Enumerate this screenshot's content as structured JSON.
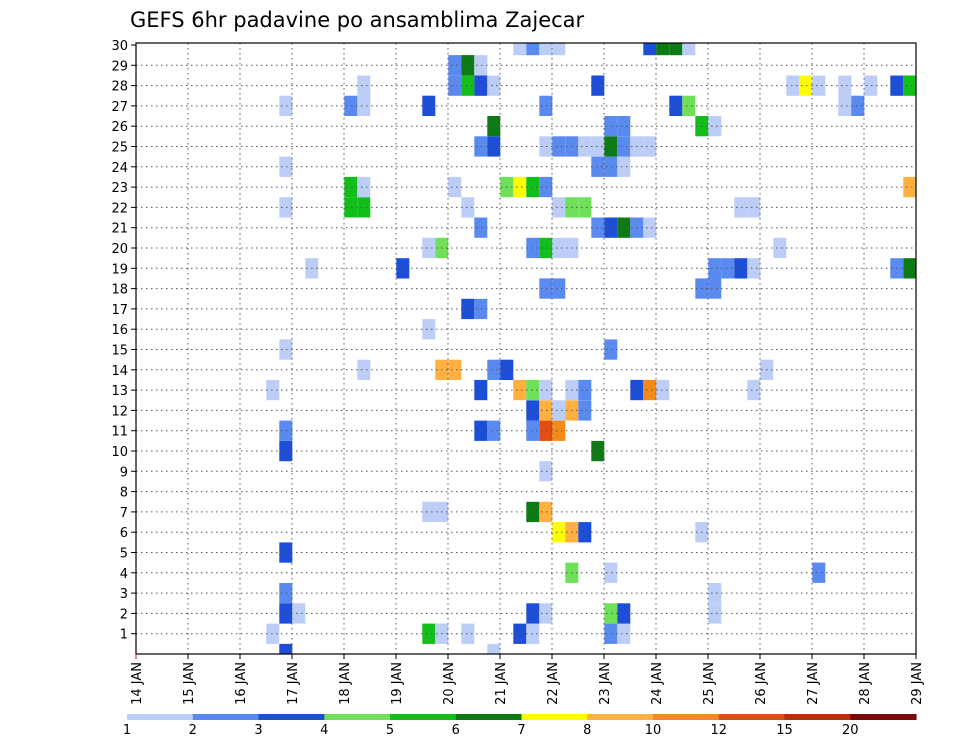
{
  "chart_data": {
    "type": "heatmap",
    "title": "GEFS 6hr padavine po ansamblima Zajecar",
    "xlabel": "",
    "ylabel": "",
    "x_tick_labels": [
      "14 JAN",
      "15 JAN",
      "16 JAN",
      "17 JAN",
      "18 JAN",
      "19 JAN",
      "20 JAN",
      "21 JAN",
      "22 JAN",
      "23 JAN",
      "24 JAN",
      "25 JAN",
      "26 JAN",
      "27 JAN",
      "28 JAN",
      "29 JAN"
    ],
    "y_tick_labels": [
      "1",
      "2",
      "3",
      "4",
      "5",
      "6",
      "7",
      "8",
      "9",
      "10",
      "11",
      "12",
      "13",
      "14",
      "15",
      "16",
      "17",
      "18",
      "19",
      "20",
      "21",
      "22",
      "23",
      "24",
      "25",
      "26",
      "27",
      "28",
      "29",
      "30"
    ],
    "xlim_days": [
      14,
      29
    ],
    "ylim_members": [
      0,
      30
    ],
    "grid": true,
    "legend_position": "bottom",
    "colorbar": {
      "tick_labels": [
        "1",
        "2",
        "3",
        "4",
        "5",
        "6",
        "7",
        "8",
        "10",
        "12",
        "15",
        "20"
      ],
      "colors": [
        "#bccdf7",
        "#5a8af0",
        "#1c4ed8",
        "#6fe05a",
        "#12bf1a",
        "#0e7a14",
        "#fffb00",
        "#ffb040",
        "#f58a18",
        "#e54c12",
        "#c42b0c",
        "#7a0a0a"
      ]
    },
    "cells": [
      {
        "member": 1,
        "day": 16.63,
        "v": 1
      },
      {
        "member": 1,
        "day": 19.63,
        "v": 5
      },
      {
        "member": 1,
        "day": 19.88,
        "v": 1
      },
      {
        "member": 1,
        "day": 20.38,
        "v": 1
      },
      {
        "member": 1,
        "day": 21.38,
        "v": 3
      },
      {
        "member": 1,
        "day": 21.63,
        "v": 1
      },
      {
        "member": 1,
        "day": 23.13,
        "v": 2
      },
      {
        "member": 1,
        "day": 23.38,
        "v": 1
      },
      {
        "member": 0,
        "day": 16.88,
        "v": 3
      },
      {
        "member": 0,
        "day": 20.88,
        "v": 1
      },
      {
        "member": 2,
        "day": 16.88,
        "v": 3
      },
      {
        "member": 2,
        "day": 17.13,
        "v": 1
      },
      {
        "member": 2,
        "day": 21.63,
        "v": 3
      },
      {
        "member": 2,
        "day": 21.88,
        "v": 1
      },
      {
        "member": 2,
        "day": 23.13,
        "v": 4
      },
      {
        "member": 2,
        "day": 23.38,
        "v": 3
      },
      {
        "member": 2,
        "day": 25.13,
        "v": 1
      },
      {
        "member": 3,
        "day": 16.88,
        "v": 2
      },
      {
        "member": 3,
        "day": 25.13,
        "v": 1
      },
      {
        "member": 4,
        "day": 22.38,
        "v": 4
      },
      {
        "member": 4,
        "day": 23.13,
        "v": 1
      },
      {
        "member": 4,
        "day": 27.13,
        "v": 2
      },
      {
        "member": 5,
        "day": 16.88,
        "v": 3
      },
      {
        "member": 6,
        "day": 22.13,
        "v": 7
      },
      {
        "member": 6,
        "day": 22.38,
        "v": 9
      },
      {
        "member": 6,
        "day": 22.63,
        "v": 3
      },
      {
        "member": 6,
        "day": 24.88,
        "v": 1
      },
      {
        "member": 7,
        "day": 19.63,
        "v": 1
      },
      {
        "member": 7,
        "day": 19.88,
        "v": 1
      },
      {
        "member": 7,
        "day": 21.63,
        "v": 6
      },
      {
        "member": 7,
        "day": 21.88,
        "v": 9
      },
      {
        "member": 9,
        "day": 21.88,
        "v": 1
      },
      {
        "member": 10,
        "day": 16.88,
        "v": 3
      },
      {
        "member": 10,
        "day": 22.88,
        "v": 6
      },
      {
        "member": 11,
        "day": 16.88,
        "v": 2
      },
      {
        "member": 11,
        "day": 20.63,
        "v": 3
      },
      {
        "member": 11,
        "day": 20.88,
        "v": 2
      },
      {
        "member": 11,
        "day": 21.63,
        "v": 2
      },
      {
        "member": 11,
        "day": 21.88,
        "v": 12
      },
      {
        "member": 11,
        "day": 22.13,
        "v": 10
      },
      {
        "member": 12,
        "day": 21.63,
        "v": 3
      },
      {
        "member": 12,
        "day": 21.88,
        "v": 8
      },
      {
        "member": 12,
        "day": 22.13,
        "v": 1
      },
      {
        "member": 12,
        "day": 22.38,
        "v": 9
      },
      {
        "member": 12,
        "day": 22.63,
        "v": 2
      },
      {
        "member": 13,
        "day": 16.63,
        "v": 1
      },
      {
        "member": 13,
        "day": 20.63,
        "v": 3
      },
      {
        "member": 13,
        "day": 21.38,
        "v": 8
      },
      {
        "member": 13,
        "day": 21.63,
        "v": 4
      },
      {
        "member": 13,
        "day": 21.88,
        "v": 1
      },
      {
        "member": 13,
        "day": 22.38,
        "v": 1
      },
      {
        "member": 13,
        "day": 22.63,
        "v": 2
      },
      {
        "member": 13,
        "day": 23.63,
        "v": 3
      },
      {
        "member": 13,
        "day": 23.88,
        "v": 10
      },
      {
        "member": 13,
        "day": 24.13,
        "v": 1
      },
      {
        "member": 13,
        "day": 25.88,
        "v": 1
      },
      {
        "member": 14,
        "day": 18.38,
        "v": 1
      },
      {
        "member": 14,
        "day": 19.88,
        "v": 8
      },
      {
        "member": 14,
        "day": 20.13,
        "v": 9
      },
      {
        "member": 14,
        "day": 20.88,
        "v": 2
      },
      {
        "member": 14,
        "day": 21.13,
        "v": 3
      },
      {
        "member": 14,
        "day": 26.13,
        "v": 1
      },
      {
        "member": 15,
        "day": 16.88,
        "v": 1
      },
      {
        "member": 15,
        "day": 23.13,
        "v": 2
      },
      {
        "member": 16,
        "day": 19.63,
        "v": 1
      },
      {
        "member": 17,
        "day": 20.38,
        "v": 3
      },
      {
        "member": 17,
        "day": 20.63,
        "v": 2
      },
      {
        "member": 18,
        "day": 21.88,
        "v": 2
      },
      {
        "member": 18,
        "day": 22.13,
        "v": 2
      },
      {
        "member": 18,
        "day": 24.88,
        "v": 2
      },
      {
        "member": 18,
        "day": 25.13,
        "v": 2
      },
      {
        "member": 19,
        "day": 17.38,
        "v": 1
      },
      {
        "member": 19,
        "day": 19.13,
        "v": 3
      },
      {
        "member": 19,
        "day": 25.13,
        "v": 2
      },
      {
        "member": 19,
        "day": 25.38,
        "v": 2
      },
      {
        "member": 19,
        "day": 25.63,
        "v": 3
      },
      {
        "member": 19,
        "day": 25.88,
        "v": 1
      },
      {
        "member": 19,
        "day": 28.63,
        "v": 2
      },
      {
        "member": 19,
        "day": 28.88,
        "v": 6
      },
      {
        "member": 20,
        "day": 19.63,
        "v": 1
      },
      {
        "member": 20,
        "day": 19.88,
        "v": 4
      },
      {
        "member": 20,
        "day": 21.63,
        "v": 2
      },
      {
        "member": 20,
        "day": 21.88,
        "v": 5
      },
      {
        "member": 20,
        "day": 22.13,
        "v": 1
      },
      {
        "member": 20,
        "day": 22.38,
        "v": 1
      },
      {
        "member": 20,
        "day": 26.38,
        "v": 1
      },
      {
        "member": 21,
        "day": 20.63,
        "v": 2
      },
      {
        "member": 21,
        "day": 22.88,
        "v": 2
      },
      {
        "member": 21,
        "day": 23.13,
        "v": 3
      },
      {
        "member": 21,
        "day": 23.38,
        "v": 6
      },
      {
        "member": 21,
        "day": 23.63,
        "v": 2
      },
      {
        "member": 21,
        "day": 23.88,
        "v": 1
      },
      {
        "member": 22,
        "day": 16.88,
        "v": 1
      },
      {
        "member": 22,
        "day": 18.13,
        "v": 5
      },
      {
        "member": 22,
        "day": 18.38,
        "v": 5
      },
      {
        "member": 22,
        "day": 20.38,
        "v": 1
      },
      {
        "member": 22,
        "day": 22.13,
        "v": 1
      },
      {
        "member": 22,
        "day": 22.38,
        "v": 4
      },
      {
        "member": 22,
        "day": 22.63,
        "v": 4
      },
      {
        "member": 22,
        "day": 25.63,
        "v": 1
      },
      {
        "member": 22,
        "day": 25.88,
        "v": 1
      },
      {
        "member": 23,
        "day": 18.13,
        "v": 5
      },
      {
        "member": 23,
        "day": 18.38,
        "v": 1
      },
      {
        "member": 23,
        "day": 20.13,
        "v": 1
      },
      {
        "member": 23,
        "day": 21.13,
        "v": 4
      },
      {
        "member": 23,
        "day": 21.38,
        "v": 7
      },
      {
        "member": 23,
        "day": 21.63,
        "v": 5
      },
      {
        "member": 23,
        "day": 21.88,
        "v": 2
      },
      {
        "member": 23,
        "day": 28.88,
        "v": 8
      },
      {
        "member": 24,
        "day": 16.88,
        "v": 1
      },
      {
        "member": 24,
        "day": 22.88,
        "v": 2
      },
      {
        "member": 24,
        "day": 23.13,
        "v": 2
      },
      {
        "member": 24,
        "day": 23.38,
        "v": 1
      },
      {
        "member": 25,
        "day": 20.63,
        "v": 2
      },
      {
        "member": 25,
        "day": 20.88,
        "v": 3
      },
      {
        "member": 25,
        "day": 21.88,
        "v": 1
      },
      {
        "member": 25,
        "day": 22.13,
        "v": 2
      },
      {
        "member": 25,
        "day": 22.38,
        "v": 2
      },
      {
        "member": 25,
        "day": 22.63,
        "v": 1
      },
      {
        "member": 25,
        "day": 22.88,
        "v": 1
      },
      {
        "member": 25,
        "day": 23.13,
        "v": 6
      },
      {
        "member": 25,
        "day": 23.38,
        "v": 2
      },
      {
        "member": 25,
        "day": 23.63,
        "v": 1
      },
      {
        "member": 25,
        "day": 23.88,
        "v": 1
      },
      {
        "member": 26,
        "day": 20.88,
        "v": 6
      },
      {
        "member": 26,
        "day": 23.13,
        "v": 2
      },
      {
        "member": 26,
        "day": 23.38,
        "v": 2
      },
      {
        "member": 26,
        "day": 24.88,
        "v": 5
      },
      {
        "member": 26,
        "day": 25.13,
        "v": 1
      },
      {
        "member": 27,
        "day": 16.88,
        "v": 1
      },
      {
        "member": 27,
        "day": 18.13,
        "v": 2
      },
      {
        "member": 27,
        "day": 18.38,
        "v": 1
      },
      {
        "member": 27,
        "day": 19.63,
        "v": 3
      },
      {
        "member": 27,
        "day": 21.88,
        "v": 2
      },
      {
        "member": 27,
        "day": 24.38,
        "v": 3
      },
      {
        "member": 27,
        "day": 24.63,
        "v": 4
      },
      {
        "member": 27,
        "day": 27.63,
        "v": 1
      },
      {
        "member": 27,
        "day": 27.88,
        "v": 2
      },
      {
        "member": 28,
        "day": 18.38,
        "v": 1
      },
      {
        "member": 28,
        "day": 20.13,
        "v": 2
      },
      {
        "member": 28,
        "day": 20.38,
        "v": 5
      },
      {
        "member": 28,
        "day": 20.63,
        "v": 3
      },
      {
        "member": 28,
        "day": 20.88,
        "v": 1
      },
      {
        "member": 28,
        "day": 22.88,
        "v": 3
      },
      {
        "member": 28,
        "day": 26.63,
        "v": 1
      },
      {
        "member": 28,
        "day": 26.88,
        "v": 7
      },
      {
        "member": 28,
        "day": 27.13,
        "v": 1
      },
      {
        "member": 28,
        "day": 27.63,
        "v": 1
      },
      {
        "member": 28,
        "day": 28.13,
        "v": 1
      },
      {
        "member": 28,
        "day": 28.63,
        "v": 3
      },
      {
        "member": 28,
        "day": 28.88,
        "v": 5
      },
      {
        "member": 29,
        "day": 20.13,
        "v": 2
      },
      {
        "member": 29,
        "day": 20.38,
        "v": 6
      },
      {
        "member": 29,
        "day": 20.63,
        "v": 1
      },
      {
        "member": 30,
        "day": 21.38,
        "v": 1
      },
      {
        "member": 30,
        "day": 21.63,
        "v": 2
      },
      {
        "member": 30,
        "day": 21.88,
        "v": 1
      },
      {
        "member": 30,
        "day": 22.13,
        "v": 1
      },
      {
        "member": 30,
        "day": 23.88,
        "v": 3
      },
      {
        "member": 30,
        "day": 24.13,
        "v": 6
      },
      {
        "member": 30,
        "day": 24.38,
        "v": 6
      },
      {
        "member": 30,
        "day": 24.63,
        "v": 1
      }
    ]
  }
}
